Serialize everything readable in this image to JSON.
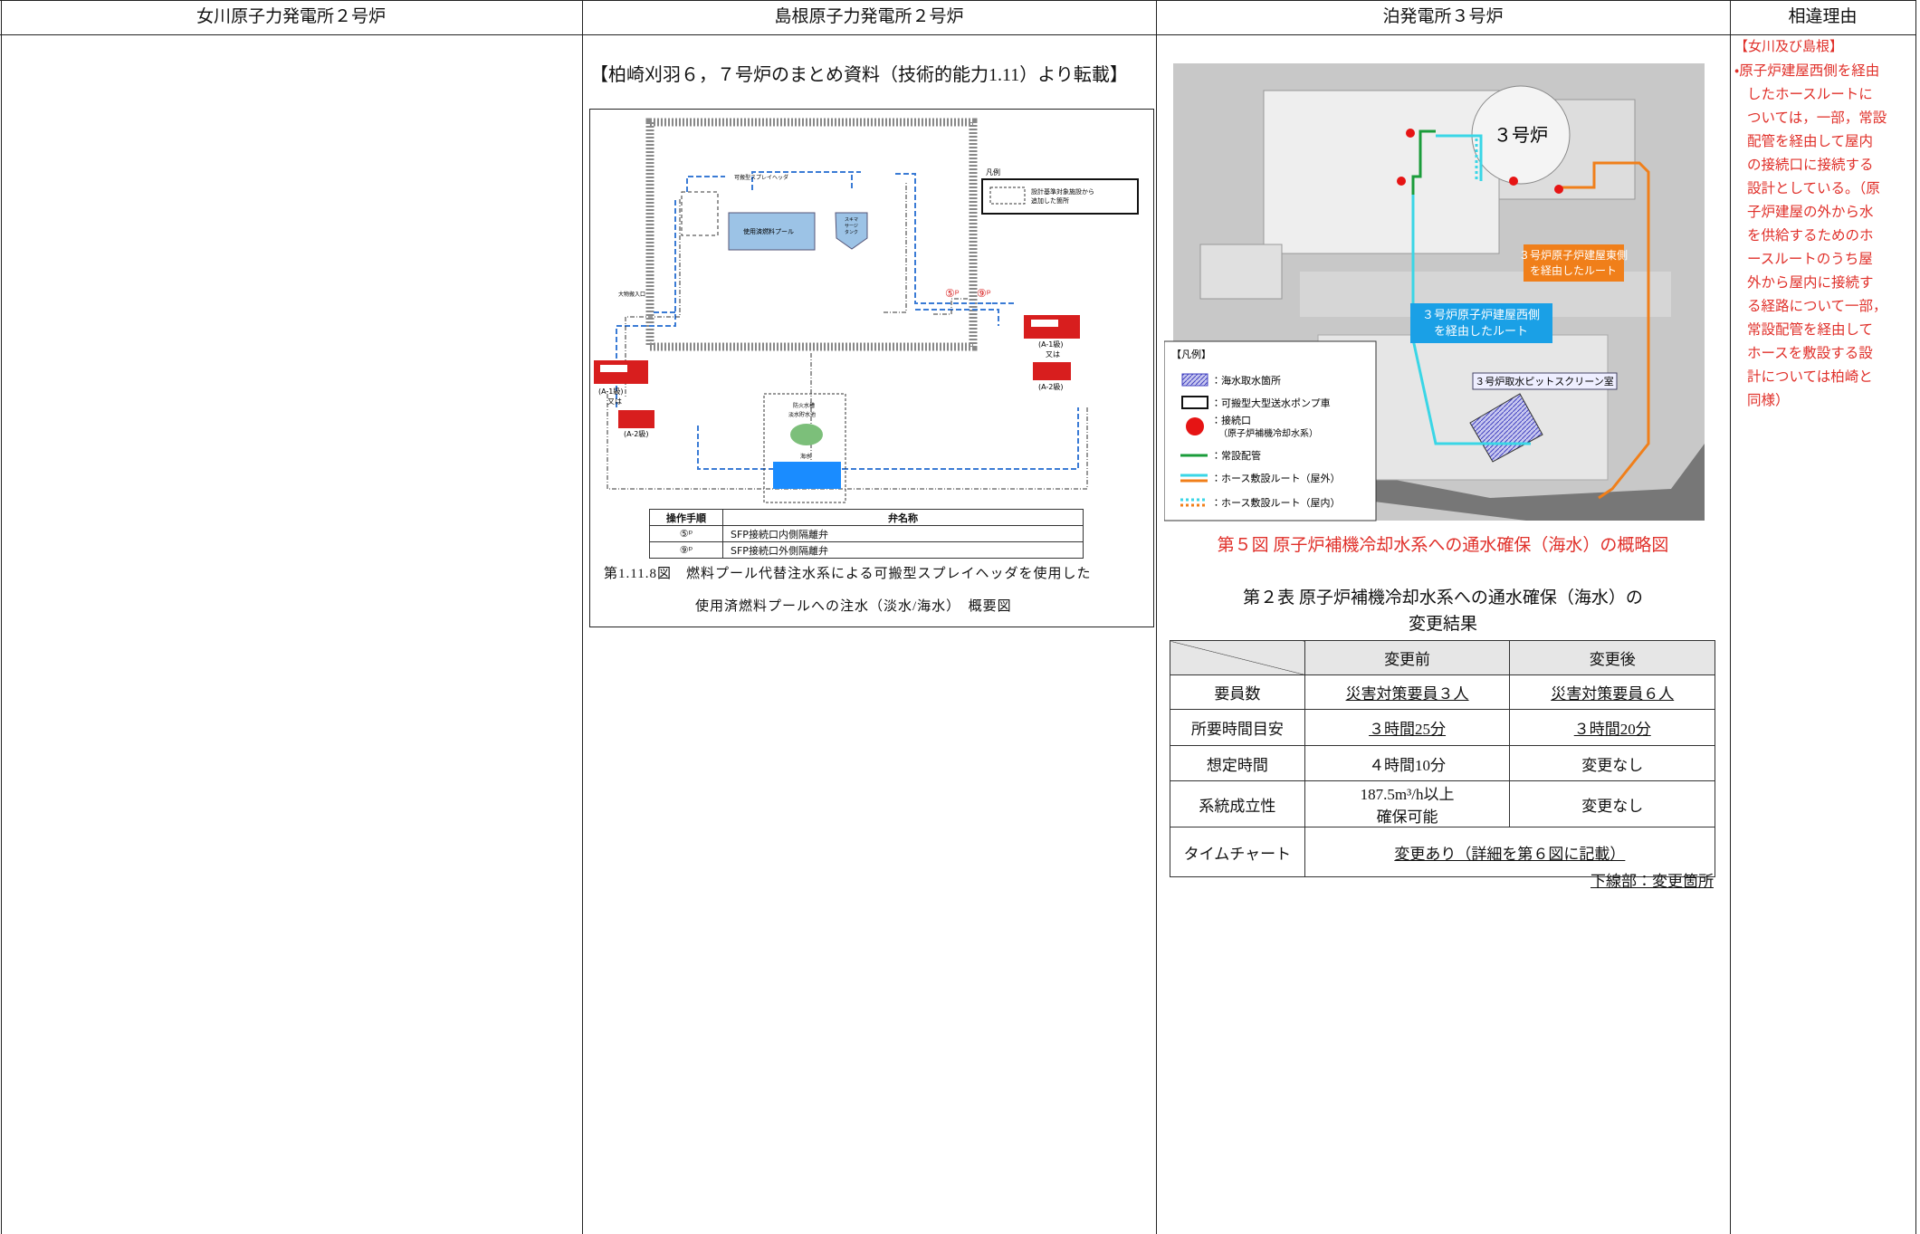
{
  "header": {
    "columns": [
      "女川原子力発電所２号炉",
      "島根原子力発電所２号炉",
      "泊発電所３号炉",
      "相違理由"
    ]
  },
  "shimane": {
    "note": "【柏崎刈羽６，７号炉のまとめ資料（技術的能力1.11）より転載】",
    "diagram": {
      "legend_title": "凡例",
      "legend_item": [
        "設計基準対象施設から",
        "追加した箇所"
      ],
      "pool": "使用済燃料プール",
      "spray": "可搬型スプレイヘッダ",
      "tank": [
        "スキマ",
        "サージ",
        "タンク"
      ],
      "entrance": "大物搬入口",
      "valve5": "⑤ᵖ",
      "valve9": "⑨ᵖ",
      "truck_left": [
        "(A-1級)",
        "又は",
        "(A-2級)"
      ],
      "truck_right": [
        "(A-1級)",
        "又は",
        "(A-2級)"
      ],
      "reservoir": [
        "防火水槽",
        "淡水貯水池"
      ],
      "sea": "海水"
    },
    "steps_table": {
      "header": [
        "操作手順",
        "弁名称"
      ],
      "rows": [
        [
          "⑤ᵖ",
          "SFP接続口内側隔離弁"
        ],
        [
          "⑨ᵖ",
          "SFP接続口外側隔離弁"
        ]
      ]
    },
    "caption": [
      "第1.11.8図　燃料プール代替注水系による可搬型スプレイヘッダを使用した",
      "使用済燃料プールへの注水（淡水/海水）　概要図"
    ]
  },
  "tomari": {
    "map": {
      "unit": "３号炉",
      "east_route": [
        "３号炉原子炉建屋東側",
        "を経由したルート"
      ],
      "west_route": [
        "３号炉原子炉建屋西側",
        "を経由したルート"
      ],
      "screen": "３号炉取水ピットスクリーン室",
      "legend": {
        "title": "【凡例】",
        "items": [
          "：海水取水箇所",
          "：可搬型大型送水ポンプ車",
          "：接続口",
          "（原子炉補機冷却水系）",
          "：常設配管",
          "：ホース敷設ルート（屋外）",
          "：ホース敷設ルート（屋内）"
        ]
      }
    },
    "figure_caption": "第５図 原子炉補機冷却水系への通水確保（海水）の概略図",
    "table_title": [
      "第２表 原子炉補機冷却水系への通水確保（海水）の",
      "変更結果"
    ],
    "table": {
      "header": [
        "変更前",
        "変更後"
      ],
      "rows": [
        [
          "要員数",
          "災害対策要員３人",
          "災害対策要員６人"
        ],
        [
          "所要時間目安",
          "３時間25分",
          "３時間20分"
        ],
        [
          "想定時間",
          "４時間10分",
          "変更なし"
        ],
        [
          "系統成立性",
          [
            "187.5m³/h以上",
            "確保可能"
          ],
          "変更なし"
        ],
        [
          "タイムチャート",
          "変更あり（詳細を第６図に記載）"
        ]
      ]
    },
    "footnote": "下線部：変更箇所"
  },
  "reason": {
    "title": "【女川及び島根】",
    "lines": [
      "・原子炉建屋西側を経由",
      "したホースルートに",
      "ついては，一部，常設",
      "配管を経由して屋内",
      "の接続口に接続する",
      "設計としている。（原",
      "子炉建屋の外から水",
      "を供給するためのホ",
      "ースルートのうち屋",
      "外から屋内に接続す",
      "る経路について一部，",
      "常設配管を経由して",
      "ホースを敷設する設",
      "計については柏崎と",
      "同様）"
    ]
  }
}
